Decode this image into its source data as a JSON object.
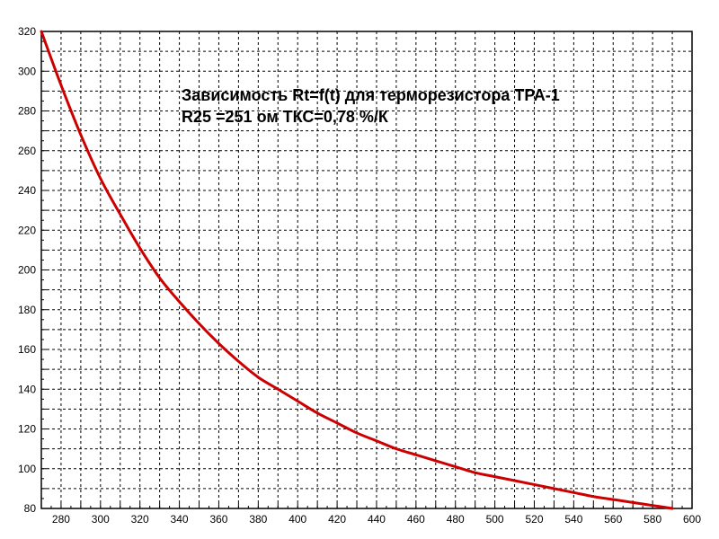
{
  "chart_data": {
    "type": "line",
    "title_lines": [
      "Зависимость Rt=f(t) для терморезистора ТРА-1",
      "R25 =251 ом ТКС=0,78 %/К"
    ],
    "xlabel": "",
    "ylabel": "",
    "xlim": [
      270,
      600
    ],
    "ylim": [
      80,
      320
    ],
    "x_ticks": [
      280,
      300,
      320,
      340,
      360,
      380,
      400,
      420,
      440,
      460,
      480,
      500,
      520,
      540,
      560,
      580,
      600
    ],
    "y_ticks": [
      80,
      100,
      120,
      140,
      160,
      180,
      200,
      220,
      240,
      260,
      280,
      300,
      320
    ],
    "grid": true,
    "series": [
      {
        "color": "#cc0000",
        "x": [
          270,
          280,
          290,
          300,
          310,
          320,
          330,
          340,
          350,
          360,
          370,
          380,
          390,
          400,
          410,
          420,
          430,
          440,
          450,
          460,
          470,
          480,
          490,
          500,
          510,
          520,
          530,
          540,
          550,
          560,
          570,
          580,
          590
        ],
        "y": [
          320,
          293,
          268,
          246,
          228,
          211,
          196,
          184,
          173,
          163,
          154,
          146,
          140,
          134,
          128,
          123,
          118,
          114,
          110,
          107,
          104,
          101,
          98,
          96,
          94,
          92,
          90,
          88,
          86,
          84.5,
          83,
          81.5,
          80
        ]
      }
    ]
  }
}
